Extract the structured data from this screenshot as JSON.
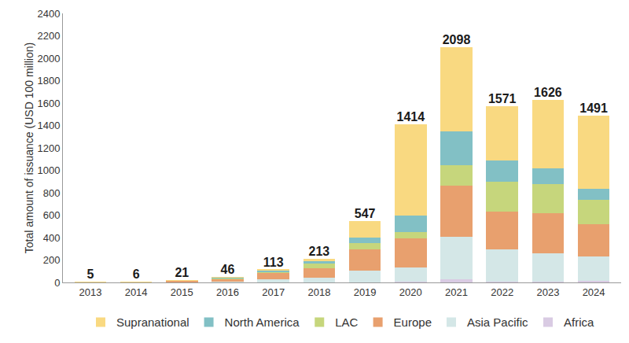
{
  "chart_data": {
    "type": "bar",
    "stacked": true,
    "y_label": "Total amount of issuance (USD 100 million)",
    "categories": [
      "2013",
      "2014",
      "2015",
      "2016",
      "2017",
      "2018",
      "2019",
      "2020",
      "2021",
      "2022",
      "2023",
      "2024"
    ],
    "series": [
      {
        "name": "Africa",
        "color": "#d9cbe3",
        "values": [
          0,
          0,
          0,
          0,
          1,
          2,
          3,
          5,
          25,
          10,
          10,
          15
        ]
      },
      {
        "name": "Asia Pacific",
        "color": "#d4e7e7",
        "values": [
          1,
          1,
          4,
          8,
          25,
          40,
          100,
          130,
          380,
          285,
          250,
          220
        ]
      },
      {
        "name": "Europe",
        "color": "#e8a06e",
        "values": [
          3,
          3,
          12,
          25,
          55,
          85,
          190,
          255,
          460,
          340,
          355,
          285
        ]
      },
      {
        "name": "LAC",
        "color": "#c6d67c",
        "values": [
          0,
          1,
          2,
          5,
          15,
          40,
          60,
          60,
          180,
          265,
          265,
          215
        ]
      },
      {
        "name": "North America",
        "color": "#82c0c5",
        "values": [
          0,
          0,
          2,
          6,
          12,
          25,
          50,
          150,
          305,
          185,
          135,
          100
        ]
      },
      {
        "name": "Supranational",
        "color": "#f9d981",
        "values": [
          1,
          1,
          1,
          2,
          5,
          21,
          144,
          814,
          748,
          486,
          611,
          656
        ]
      }
    ],
    "totals": [
      5,
      6,
      21,
      46,
      113,
      213,
      547,
      1414,
      2098,
      1571,
      1626,
      1491
    ],
    "ylim": [
      0,
      2400
    ],
    "yticks": [
      0,
      200,
      400,
      600,
      800,
      1000,
      1200,
      1400,
      1600,
      1800,
      2000,
      2200,
      2400
    ],
    "grid": false,
    "legend": "bottom"
  }
}
